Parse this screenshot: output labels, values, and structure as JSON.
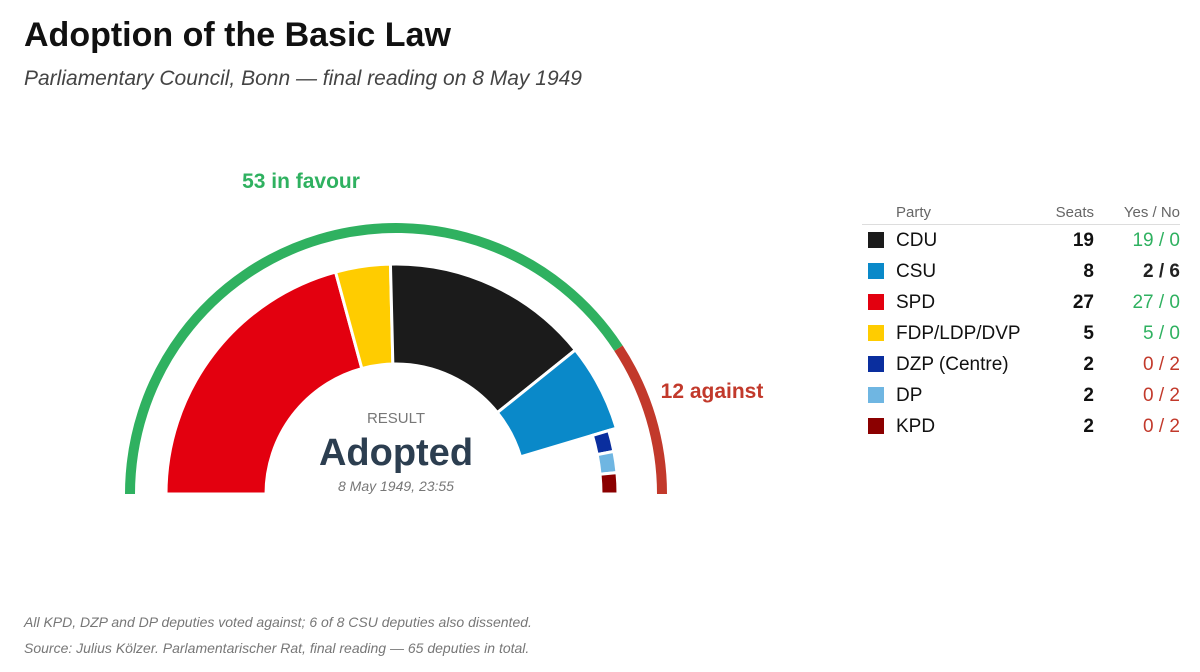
{
  "title": "Adoption of the Basic Law",
  "subtitle": "Parliamentary Council, Bonn — final reading on 8 May 1949",
  "center": {
    "kicker": "RESULT",
    "result": "Adopted",
    "timestamp": "8 May 1949, 23:55"
  },
  "legend_headers": {
    "party": "Party",
    "seats": "Seats",
    "vote": "Yes / No"
  },
  "notes": {
    "line1": "All KPD, DZP and DP deputies voted against; 6 of 8 CSU deputies also dissented.",
    "line2": "Source: Julius Kölzer. Parlamentarischer Rat, final reading — 65 deputies in total."
  },
  "colors": {
    "yes": "#2fb160",
    "no": "#c2392b",
    "mixed": "#222222"
  },
  "chart_data": {
    "type": "parliament-semicircle",
    "title": "Adoption of the Basic Law",
    "subtitle": "Parliamentary Council, Bonn — final reading on 8 May 1949",
    "total_seats": 65,
    "yes_total": 53,
    "no_total": 12,
    "yes_label": "53 in favour",
    "no_label": "12 against",
    "arc_order": [
      "SPD",
      "FDP/LDP/DVP",
      "CDU",
      "CSU",
      "DZP (Centre)",
      "DP",
      "KPD"
    ],
    "parties": [
      {
        "name": "CDU",
        "seats": 19,
        "yes": 19,
        "no": 0,
        "vote_label": "19 / 0",
        "color": "#1b1b1b"
      },
      {
        "name": "CSU",
        "seats": 8,
        "yes": 2,
        "no": 6,
        "vote_label": "2 / 6",
        "color": "#0a89c9"
      },
      {
        "name": "SPD",
        "seats": 27,
        "yes": 27,
        "no": 0,
        "vote_label": "27 / 0",
        "color": "#e3000f"
      },
      {
        "name": "FDP/LDP/DVP",
        "seats": 5,
        "yes": 5,
        "no": 0,
        "vote_label": "5 / 0",
        "color": "#ffcc00"
      },
      {
        "name": "DZP (Centre)",
        "seats": 2,
        "yes": 0,
        "no": 2,
        "vote_label": "0 / 2",
        "color": "#0a2e9e"
      },
      {
        "name": "DP",
        "seats": 2,
        "yes": 0,
        "no": 2,
        "vote_label": "0 / 2",
        "color": "#6fb6e2"
      },
      {
        "name": "KPD",
        "seats": 2,
        "yes": 0,
        "no": 2,
        "vote_label": "0 / 2",
        "color": "#8b0000"
      }
    ]
  }
}
